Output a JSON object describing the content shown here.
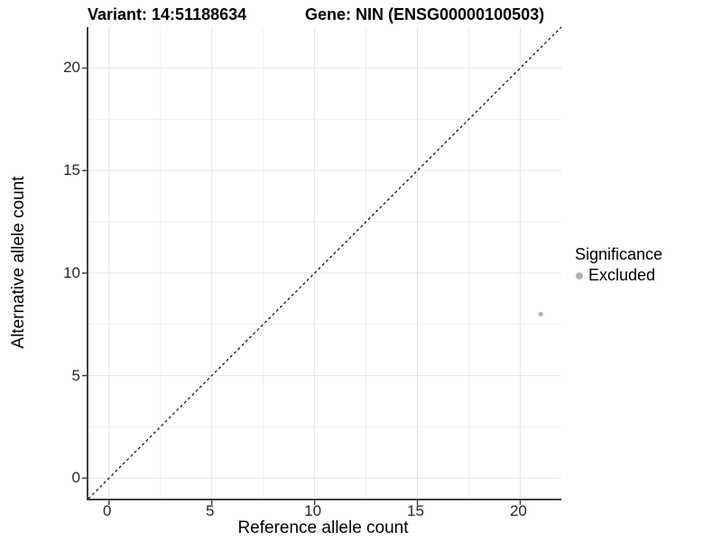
{
  "chart_data": {
    "type": "scatter",
    "title_left": "Variant: 14:51188634",
    "title_right": "Gene: NIN (ENSG00000100503)",
    "xlabel": "Reference allele count",
    "ylabel": "Alternative allele count",
    "xlim": [
      -1,
      22
    ],
    "ylim": [
      -1,
      22
    ],
    "x_ticks": [
      0,
      5,
      10,
      15,
      20
    ],
    "y_ticks": [
      0,
      5,
      10,
      15,
      20
    ],
    "minor_step": 2.5,
    "grid": true,
    "reference_line": {
      "type": "identity",
      "slope": 1,
      "intercept": 0,
      "style": "dashed",
      "color": "#000000"
    },
    "series": [
      {
        "name": "Excluded",
        "color": "#b3b3b3",
        "point_radius": 2.6,
        "points": [
          {
            "x": 21,
            "y": 8
          }
        ]
      }
    ],
    "legend": {
      "title": "Significance",
      "position": "right",
      "items": [
        {
          "label": "Excluded",
          "color": "#b3b3b3"
        }
      ]
    },
    "colors": {
      "axis_line": "#404040",
      "tick_mark": "#404040",
      "grid_major": "#e4e4e4",
      "grid_minor": "#f0f0f0",
      "background": "#ffffff"
    }
  }
}
